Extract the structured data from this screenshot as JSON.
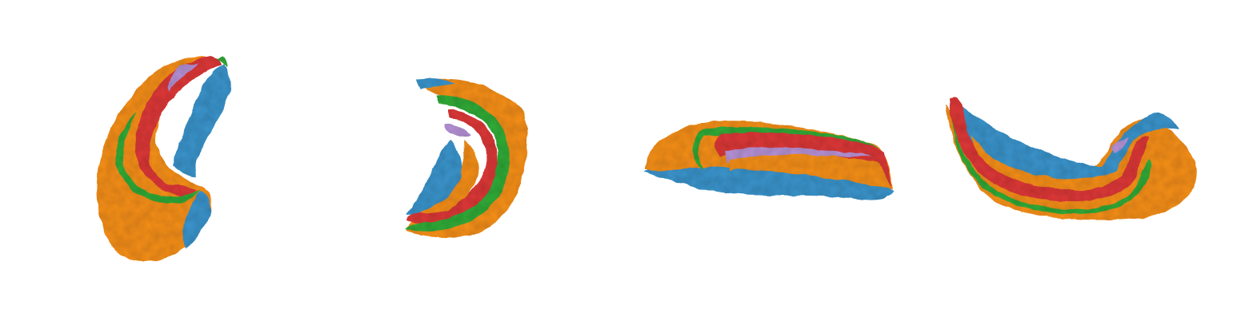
{
  "figure": {
    "views": [
      {
        "id": "view-1"
      },
      {
        "id": "view-2"
      },
      {
        "id": "view-3"
      },
      {
        "id": "view-4"
      }
    ],
    "colors": {
      "background": "#ffffff",
      "orange": "#f18d1f",
      "blue": "#3b92c8",
      "red": "#d93838",
      "green": "#33a837",
      "purple": "#b28fd1"
    }
  }
}
